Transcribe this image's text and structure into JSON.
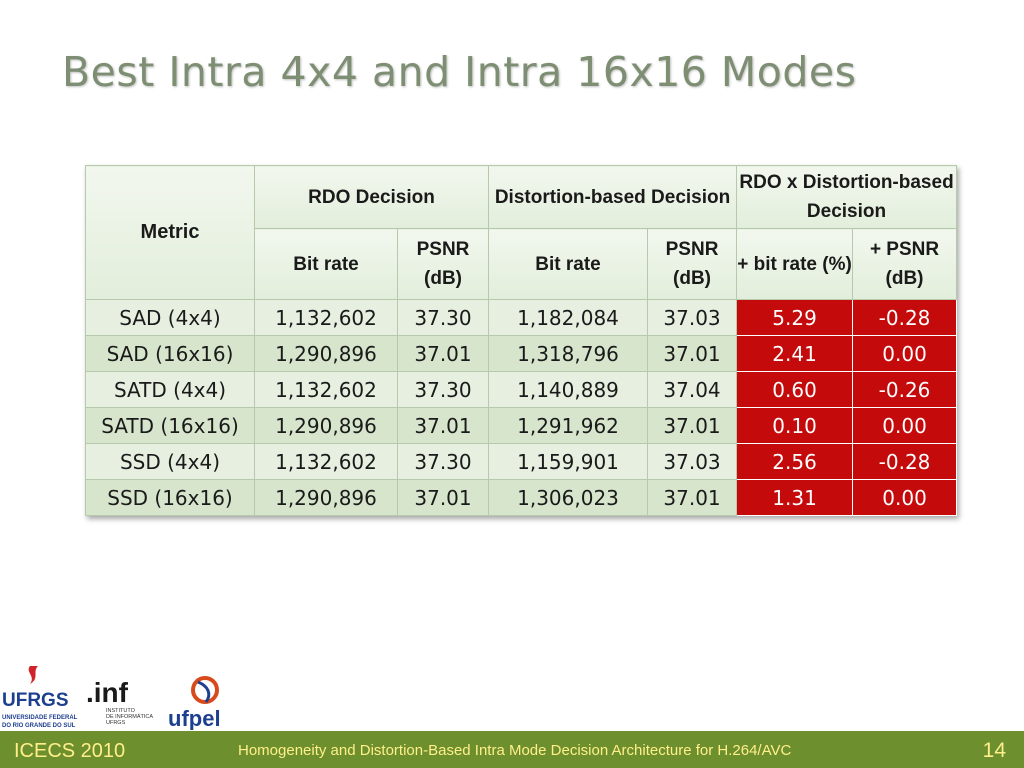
{
  "slide": {
    "title": "Best Intra 4x4 and Intra 16x16 Modes"
  },
  "table": {
    "headers": {
      "metric": "Metric",
      "rdo": "RDO Decision",
      "dist": "Distortion-based Decision",
      "combo": "RDO x Distortion-based Decision",
      "bitrate": "Bit rate",
      "psnr": "PSNR (dB)",
      "plus_bit": "+ bit rate (%)",
      "plus_psnr": "+ PSNR (dB)"
    },
    "rows": [
      [
        "SAD (4x4)",
        "1,132,602",
        "37.30",
        "1,182,084",
        "37.03",
        "5.29",
        "-0.28"
      ],
      [
        "SAD (16x16)",
        "1,290,896",
        "37.01",
        "1,318,796",
        "37.01",
        "2.41",
        "0.00"
      ],
      [
        "SATD (4x4)",
        "1,132,602",
        "37.30",
        "1,140,889",
        "37.04",
        "0.60",
        "-0.26"
      ],
      [
        "SATD (16x16)",
        "1,290,896",
        "37.01",
        "1,291,962",
        "37.01",
        "0.10",
        "0.00"
      ],
      [
        "SSD (4x4)",
        "1,132,602",
        "37.30",
        "1,159,901",
        "37.03",
        "2.56",
        "-0.28"
      ],
      [
        "SSD (16x16)",
        "1,290,896",
        "37.01",
        "1,306,023",
        "37.01",
        "1.31",
        "0.00"
      ]
    ]
  },
  "logos": {
    "ufrgs": "UFRGS",
    "ufrgs_sub1": "UNIVERSIDADE FEDERAL",
    "ufrgs_sub2": "DO RIO GRANDE DO SUL",
    "inf": ".inf",
    "inf_sub1": "INSTITUTO",
    "inf_sub2": "DE INFORMÁTICA",
    "inf_sub3": "UFRGS",
    "ufpel": "ufpel"
  },
  "footer": {
    "conference": "ICECS 2010",
    "paper_title": "Homogeneity and Distortion-Based Intra Mode Decision Architecture for H.264/AVC",
    "page_number": "14"
  },
  "colors": {
    "title": "#7d8e73",
    "highlight": "#c40a0a",
    "footer_bg": "#6d8f2e",
    "footer_text": "#ffef8a"
  }
}
